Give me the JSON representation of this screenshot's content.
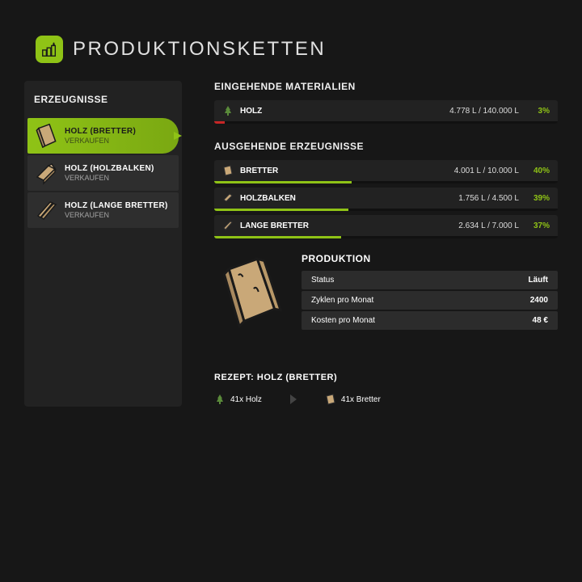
{
  "colors": {
    "accent": "#8fc316",
    "bar_in": "#c72626",
    "bar_out": "#8fc316"
  },
  "header": {
    "title": "PRODUKTIONSKETTEN"
  },
  "sidebar": {
    "title": "ERZEUGNISSE",
    "items": [
      {
        "name": "HOLZ (BRETTER)",
        "action": "VERKAUFEN",
        "selected": true,
        "icon": "planks"
      },
      {
        "name": "HOLZ (HOLZBALKEN)",
        "action": "VERKAUFEN",
        "selected": false,
        "icon": "beam"
      },
      {
        "name": "HOLZ (LANGE BRETTER)",
        "action": "VERKAUFEN",
        "selected": false,
        "icon": "long"
      }
    ]
  },
  "incoming": {
    "title": "EINGEHENDE MATERIALIEN",
    "rows": [
      {
        "name": "HOLZ",
        "value": "4.778 L / 140.000 L",
        "pct": "3%",
        "fill": 3,
        "icon": "tree"
      }
    ]
  },
  "outgoing": {
    "title": "AUSGEHENDE ERZEUGNISSE",
    "rows": [
      {
        "name": "BRETTER",
        "value": "4.001 L / 10.000 L",
        "pct": "40%",
        "fill": 40,
        "icon": "planks-s"
      },
      {
        "name": "HOLZBALKEN",
        "value": "1.756 L / 4.500 L",
        "pct": "39%",
        "fill": 39,
        "icon": "beam-s"
      },
      {
        "name": "LANGE BRETTER",
        "value": "2.634 L / 7.000 L",
        "pct": "37%",
        "fill": 37,
        "icon": "long-s"
      }
    ]
  },
  "production": {
    "title": "PRODUKTION",
    "rows": [
      {
        "label": "Status",
        "value": "Läuft"
      },
      {
        "label": "Zyklen pro Monat",
        "value": "2400"
      },
      {
        "label": "Kosten pro Monat",
        "value": "48 €"
      }
    ]
  },
  "recipe": {
    "title": "REZEPT: HOLZ (BRETTER)",
    "input": {
      "text": "41x Holz",
      "icon": "tree"
    },
    "output": {
      "text": "41x Bretter",
      "icon": "planks-s"
    }
  }
}
